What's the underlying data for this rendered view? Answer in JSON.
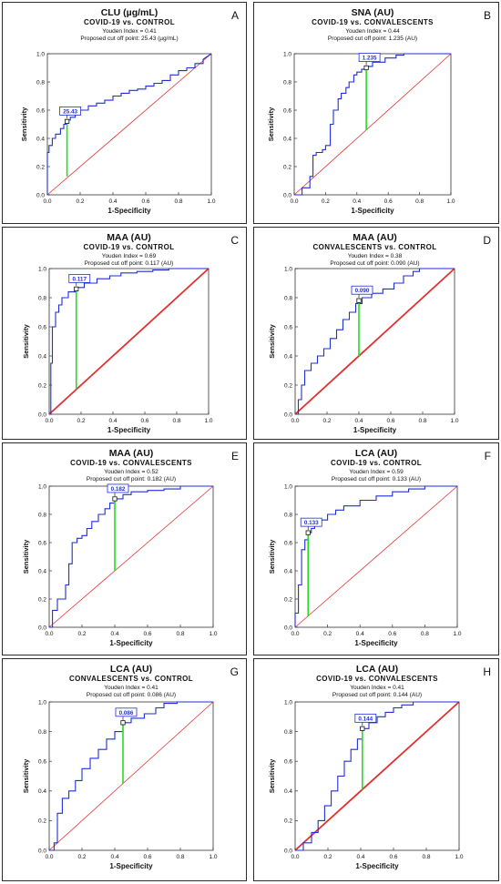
{
  "chart_data": [
    {
      "type": "line",
      "panel_letter": "A",
      "title": "CLU (µg/mL)",
      "subtitle": "COVID-19 vs. CONTROL",
      "youden_text": "Youden Index = 0.41",
      "cutoff_text": "Proposed cut off point: 25.43 (µg/mL)",
      "cutoff_label": "25.43",
      "xlabel": "1-Specificity",
      "ylabel": "Sensitivity",
      "xlim": [
        0,
        1
      ],
      "ylim": [
        0,
        1
      ],
      "ticks": [
        "0.0",
        "0.2",
        "0.4",
        "0.6",
        "0.8",
        "1.0"
      ],
      "reference_line": {
        "color": "#e03030",
        "width": 0.8
      },
      "cutoff_point": {
        "x": 0.12,
        "y": 0.52
      },
      "youden_segment": {
        "x": 0.12,
        "y0": 0.13,
        "y1": 0.52
      },
      "series": [
        {
          "x": [
            0,
            0,
            0.01,
            0.01,
            0.03,
            0.03,
            0.05,
            0.05,
            0.08,
            0.08,
            0.1,
            0.1,
            0.12,
            0.12,
            0.14,
            0.14,
            0.17,
            0.17,
            0.2,
            0.2,
            0.25,
            0.25,
            0.3,
            0.3,
            0.35,
            0.35,
            0.4,
            0.4,
            0.45,
            0.45,
            0.5,
            0.5,
            0.55,
            0.55,
            0.6,
            0.6,
            0.65,
            0.65,
            0.7,
            0.7,
            0.75,
            0.75,
            0.8,
            0.8,
            0.85,
            0.85,
            0.9,
            0.9,
            0.95,
            0.95,
            1.0
          ],
          "y": [
            0,
            0.3,
            0.3,
            0.35,
            0.35,
            0.4,
            0.4,
            0.43,
            0.43,
            0.47,
            0.47,
            0.5,
            0.5,
            0.53,
            0.53,
            0.55,
            0.55,
            0.57,
            0.57,
            0.6,
            0.6,
            0.63,
            0.63,
            0.65,
            0.65,
            0.67,
            0.67,
            0.7,
            0.7,
            0.72,
            0.72,
            0.74,
            0.74,
            0.75,
            0.75,
            0.77,
            0.77,
            0.79,
            0.79,
            0.81,
            0.81,
            0.85,
            0.85,
            0.88,
            0.88,
            0.9,
            0.9,
            0.93,
            0.93,
            0.96,
            1.0
          ]
        }
      ]
    },
    {
      "type": "line",
      "panel_letter": "B",
      "title": "SNA (AU)",
      "subtitle": "COVID-19 vs. CONVALESCENTS",
      "youden_text": "Youden Index = 0.44",
      "cutoff_text": "Proposed cut off point: 1.235 (AU)",
      "cutoff_label": "1.235",
      "xlabel": "1-Specificity",
      "ylabel": "Sensitivity",
      "xlim": [
        0,
        1
      ],
      "ylim": [
        0,
        1
      ],
      "ticks": [
        "0.0",
        "0.2",
        "0.4",
        "0.6",
        "0.8",
        "1.0"
      ],
      "reference_line": {
        "color": "#e03030",
        "width": 0.8
      },
      "cutoff_point": {
        "x": 0.46,
        "y": 0.9
      },
      "youden_segment": {
        "x": 0.46,
        "y0": 0.46,
        "y1": 0.9
      },
      "series": [
        {
          "x": [
            0,
            0.05,
            0.05,
            0.1,
            0.1,
            0.12,
            0.12,
            0.14,
            0.14,
            0.18,
            0.18,
            0.2,
            0.2,
            0.23,
            0.23,
            0.25,
            0.25,
            0.28,
            0.28,
            0.3,
            0.3,
            0.33,
            0.33,
            0.35,
            0.35,
            0.38,
            0.38,
            0.4,
            0.4,
            0.43,
            0.43,
            0.46,
            0.46,
            0.5,
            0.5,
            0.58,
            0.58,
            0.65,
            0.65,
            0.7,
            0.7,
            1.0
          ],
          "y": [
            0,
            0,
            0.05,
            0.05,
            0.13,
            0.13,
            0.28,
            0.28,
            0.3,
            0.3,
            0.32,
            0.32,
            0.35,
            0.35,
            0.5,
            0.5,
            0.6,
            0.6,
            0.68,
            0.68,
            0.72,
            0.72,
            0.76,
            0.76,
            0.8,
            0.8,
            0.85,
            0.85,
            0.87,
            0.87,
            0.89,
            0.89,
            0.91,
            0.91,
            0.94,
            0.94,
            0.97,
            0.97,
            0.99,
            0.99,
            1.0,
            1.0
          ]
        }
      ]
    },
    {
      "type": "line",
      "panel_letter": "C",
      "title": "MAA (AU)",
      "subtitle": "COVID-19 vs. CONTROL",
      "youden_text": "Youden Index = 0.69",
      "cutoff_text": "Proposed cut off point: 0.117 (AU)",
      "cutoff_label": "0.117",
      "xlabel": "1-Specificity",
      "ylabel": "Sensitivity",
      "xlim": [
        0,
        1
      ],
      "ylim": [
        0,
        1
      ],
      "ticks": [
        "0.0",
        "0.2",
        "0.4",
        "0.6",
        "0.8",
        "1.0"
      ],
      "reference_line": {
        "color": "#e03030",
        "width": 1.8
      },
      "cutoff_point": {
        "x": 0.17,
        "y": 0.86
      },
      "youden_segment": {
        "x": 0.17,
        "y0": 0.17,
        "y1": 0.86
      },
      "series": [
        {
          "x": [
            0,
            0.01,
            0.01,
            0.02,
            0.02,
            0.04,
            0.04,
            0.06,
            0.06,
            0.08,
            0.08,
            0.12,
            0.12,
            0.17,
            0.17,
            0.22,
            0.22,
            0.3,
            0.3,
            0.38,
            0.38,
            0.45,
            0.45,
            0.55,
            0.55,
            0.65,
            0.65,
            0.75,
            0.75,
            1.0
          ],
          "y": [
            0,
            0,
            0.35,
            0.35,
            0.6,
            0.6,
            0.7,
            0.7,
            0.75,
            0.75,
            0.8,
            0.8,
            0.84,
            0.84,
            0.87,
            0.87,
            0.9,
            0.9,
            0.93,
            0.93,
            0.95,
            0.95,
            0.97,
            0.97,
            0.98,
            0.98,
            0.99,
            0.99,
            1.0,
            1.0
          ]
        }
      ]
    },
    {
      "type": "line",
      "panel_letter": "D",
      "title": "MAA (AU)",
      "subtitle": "CONVALESCENTS vs. CONTROL",
      "youden_text": "Youden Index = 0.38",
      "cutoff_text": "Proposed cut off point: 0.090 (AU)",
      "cutoff_label": "0.090",
      "xlabel": "1-Specificity",
      "ylabel": "Sensitivity",
      "xlim": [
        0,
        1
      ],
      "ylim": [
        0,
        1
      ],
      "ticks": [
        "0.0",
        "0.2",
        "0.4",
        "0.6",
        "0.8",
        "1.0"
      ],
      "reference_line": {
        "color": "#e03030",
        "width": 1.8
      },
      "cutoff_point": {
        "x": 0.4,
        "y": 0.78
      },
      "youden_segment": {
        "x": 0.4,
        "y0": 0.4,
        "y1": 0.78
      },
      "series": [
        {
          "x": [
            0,
            0.02,
            0.02,
            0.04,
            0.04,
            0.06,
            0.06,
            0.1,
            0.1,
            0.14,
            0.14,
            0.18,
            0.18,
            0.22,
            0.22,
            0.26,
            0.26,
            0.3,
            0.3,
            0.34,
            0.34,
            0.38,
            0.38,
            0.42,
            0.42,
            0.48,
            0.48,
            0.55,
            0.55,
            0.62,
            0.62,
            0.68,
            0.68,
            0.74,
            0.74,
            0.78,
            0.78,
            1.0
          ],
          "y": [
            0,
            0,
            0.1,
            0.1,
            0.2,
            0.2,
            0.3,
            0.3,
            0.35,
            0.35,
            0.4,
            0.4,
            0.45,
            0.45,
            0.52,
            0.52,
            0.58,
            0.58,
            0.65,
            0.65,
            0.7,
            0.7,
            0.76,
            0.76,
            0.8,
            0.8,
            0.83,
            0.83,
            0.86,
            0.86,
            0.9,
            0.9,
            0.95,
            0.95,
            0.98,
            0.98,
            1.0,
            1.0
          ]
        }
      ]
    },
    {
      "type": "line",
      "panel_letter": "E",
      "title": "MAA (AU)",
      "subtitle": "COVID-19 vs. CONVALESCENTS",
      "youden_text": "Youden Index = 0.52",
      "cutoff_text": "Proposed cut off point: 0.182 (AU)",
      "cutoff_label": "0.182",
      "xlabel": "1-Specificity",
      "ylabel": "Sensitivity",
      "xlim": [
        0,
        1
      ],
      "ylim": [
        0,
        1
      ],
      "ticks": [
        "0.0",
        "0.2",
        "0.4",
        "0.6",
        "0.8",
        "1.0"
      ],
      "reference_line": {
        "color": "#e03030",
        "width": 0.8
      },
      "cutoff_point": {
        "x": 0.4,
        "y": 0.91
      },
      "youden_segment": {
        "x": 0.4,
        "y0": 0.4,
        "y1": 0.91
      },
      "series": [
        {
          "x": [
            0,
            0.02,
            0.02,
            0.05,
            0.05,
            0.1,
            0.1,
            0.12,
            0.12,
            0.14,
            0.14,
            0.17,
            0.17,
            0.2,
            0.2,
            0.23,
            0.23,
            0.26,
            0.26,
            0.3,
            0.3,
            0.34,
            0.34,
            0.37,
            0.37,
            0.4,
            0.4,
            0.45,
            0.45,
            0.5,
            0.5,
            0.6,
            0.6,
            0.7,
            0.7,
            0.8,
            0.8,
            1.0
          ],
          "y": [
            0,
            0,
            0.12,
            0.12,
            0.2,
            0.2,
            0.3,
            0.3,
            0.45,
            0.45,
            0.6,
            0.6,
            0.63,
            0.63,
            0.65,
            0.65,
            0.7,
            0.7,
            0.75,
            0.75,
            0.8,
            0.8,
            0.84,
            0.84,
            0.88,
            0.88,
            0.91,
            0.91,
            0.94,
            0.94,
            0.96,
            0.96,
            0.97,
            0.97,
            0.98,
            0.98,
            1.0,
            1.0
          ]
        }
      ]
    },
    {
      "type": "line",
      "panel_letter": "F",
      "title": "LCA (AU)",
      "subtitle": "COVID-19 vs. CONTROL",
      "youden_text": "Youden Index = 0.59",
      "cutoff_text": "Proposed cut off point: 0.133 (AU)",
      "cutoff_label": "0.133",
      "xlabel": "1-Specificity",
      "ylabel": "Sensitivity",
      "xlim": [
        0,
        1
      ],
      "ylim": [
        0,
        1
      ],
      "ticks": [
        "0.0",
        "0.2",
        "0.4",
        "0.6",
        "0.8",
        "1.0"
      ],
      "reference_line": {
        "color": "#e03030",
        "width": 0.8
      },
      "cutoff_point": {
        "x": 0.08,
        "y": 0.67
      },
      "youden_segment": {
        "x": 0.08,
        "y0": 0.08,
        "y1": 0.67
      },
      "series": [
        {
          "x": [
            0,
            0,
            0.02,
            0.02,
            0.04,
            0.04,
            0.06,
            0.06,
            0.08,
            0.08,
            0.1,
            0.1,
            0.12,
            0.12,
            0.15,
            0.15,
            0.2,
            0.2,
            0.25,
            0.25,
            0.3,
            0.3,
            0.4,
            0.4,
            0.5,
            0.5,
            0.6,
            0.6,
            0.7,
            0.7,
            0.8,
            0.8,
            1.0
          ],
          "y": [
            0,
            0.1,
            0.1,
            0.3,
            0.3,
            0.55,
            0.55,
            0.62,
            0.62,
            0.67,
            0.67,
            0.7,
            0.7,
            0.73,
            0.73,
            0.76,
            0.76,
            0.8,
            0.8,
            0.83,
            0.83,
            0.86,
            0.86,
            0.9,
            0.9,
            0.93,
            0.93,
            0.96,
            0.96,
            0.98,
            0.98,
            1.0,
            1.0
          ]
        }
      ]
    },
    {
      "type": "line",
      "panel_letter": "G",
      "title": "LCA (AU)",
      "subtitle": "CONVALESCENTS vs. CONTROL",
      "youden_text": "Youden Index = 0.41",
      "cutoff_text": "Proposed cut off point: 0.086 (AU)",
      "cutoff_label": "0.086",
      "xlabel": "1-Specificity",
      "ylabel": "Sensitivity",
      "xlim": [
        0,
        1
      ],
      "ylim": [
        0,
        1
      ],
      "ticks": [
        "0.0",
        "0.2",
        "0.4",
        "0.6",
        "0.8",
        "1.0"
      ],
      "reference_line": {
        "color": "#e03030",
        "width": 0.8
      },
      "cutoff_point": {
        "x": 0.45,
        "y": 0.86
      },
      "youden_segment": {
        "x": 0.45,
        "y0": 0.45,
        "y1": 0.86
      },
      "series": [
        {
          "x": [
            0,
            0.03,
            0.03,
            0.05,
            0.05,
            0.08,
            0.08,
            0.12,
            0.12,
            0.16,
            0.16,
            0.2,
            0.2,
            0.25,
            0.25,
            0.3,
            0.3,
            0.35,
            0.35,
            0.4,
            0.4,
            0.45,
            0.45,
            0.5,
            0.5,
            0.58,
            0.58,
            0.65,
            0.65,
            0.7,
            0.7,
            0.78,
            0.78,
            1.0
          ],
          "y": [
            0,
            0,
            0.05,
            0.05,
            0.25,
            0.25,
            0.35,
            0.35,
            0.4,
            0.4,
            0.47,
            0.47,
            0.55,
            0.55,
            0.62,
            0.62,
            0.68,
            0.68,
            0.75,
            0.75,
            0.8,
            0.8,
            0.86,
            0.86,
            0.89,
            0.89,
            0.92,
            0.92,
            0.96,
            0.96,
            0.99,
            0.99,
            1.0,
            1.0
          ]
        }
      ]
    },
    {
      "type": "line",
      "panel_letter": "H",
      "title": "LCA (AU)",
      "subtitle": "COVID-19 vs. CONVALESCENTS",
      "youden_text": "Youden Index = 0.41",
      "cutoff_text": "Proposed cut off point: 0.144 (AU)",
      "cutoff_label": "0.144",
      "xlabel": "1-Specificity",
      "ylabel": "Sensitivity",
      "xlim": [
        0,
        1
      ],
      "ylim": [
        0,
        1
      ],
      "ticks": [
        "0.0",
        "0.2",
        "0.4",
        "0.6",
        "0.8",
        "1.0"
      ],
      "reference_line": {
        "color": "#e03030",
        "width": 1.8
      },
      "cutoff_point": {
        "x": 0.41,
        "y": 0.82
      },
      "youden_segment": {
        "x": 0.41,
        "y0": 0.41,
        "y1": 0.82
      },
      "series": [
        {
          "x": [
            0,
            0.05,
            0.05,
            0.1,
            0.1,
            0.14,
            0.14,
            0.18,
            0.18,
            0.22,
            0.22,
            0.26,
            0.26,
            0.3,
            0.3,
            0.34,
            0.34,
            0.38,
            0.38,
            0.41,
            0.41,
            0.45,
            0.45,
            0.5,
            0.5,
            0.55,
            0.55,
            0.6,
            0.6,
            0.65,
            0.65,
            0.72,
            0.72,
            1.0
          ],
          "y": [
            0,
            0,
            0.05,
            0.05,
            0.12,
            0.12,
            0.2,
            0.2,
            0.3,
            0.3,
            0.4,
            0.4,
            0.5,
            0.5,
            0.6,
            0.6,
            0.68,
            0.68,
            0.75,
            0.75,
            0.82,
            0.82,
            0.86,
            0.86,
            0.9,
            0.9,
            0.93,
            0.93,
            0.96,
            0.96,
            0.98,
            0.98,
            1.0,
            1.0
          ]
        }
      ]
    }
  ]
}
